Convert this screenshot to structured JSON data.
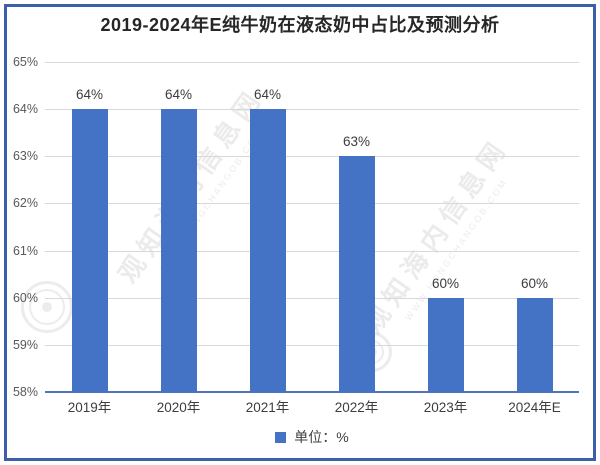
{
  "title": "2019-2024年E纯牛奶在液态奶中占比及预测分析",
  "legend": {
    "label": "单位：%",
    "swatch_color": "#4472c4"
  },
  "watermark": {
    "text": "观知海内信息网",
    "url_text": "WWW.HONGCHANGOB.COM"
  },
  "colors": {
    "bar": "#4472c4",
    "frame_border": "#3b5fa9",
    "gridline": "#d9d9d9",
    "axis_line": "#4f74b8",
    "title_text": "#262626",
    "tick_text": "#595959"
  },
  "chart_data": {
    "type": "bar",
    "title": "2019-2024年E纯牛奶在液态奶中占比及预测分析",
    "categories": [
      "2019年",
      "2020年",
      "2021年",
      "2022年",
      "2023年",
      "2024年E"
    ],
    "values": [
      64,
      64,
      64,
      63,
      60,
      60
    ],
    "labels": [
      "64%",
      "64%",
      "64%",
      "63%",
      "60%",
      "60%"
    ],
    "xlabel": "",
    "ylabel": "",
    "ylim": [
      58,
      65
    ],
    "y_ticks": [
      "65%",
      "64%",
      "63%",
      "62%",
      "61%",
      "60%",
      "59%",
      "58%"
    ],
    "bar_color": "#4472c4",
    "grid": true,
    "legend_entries": [
      "单位：%"
    ],
    "legend_position": "bottom"
  }
}
